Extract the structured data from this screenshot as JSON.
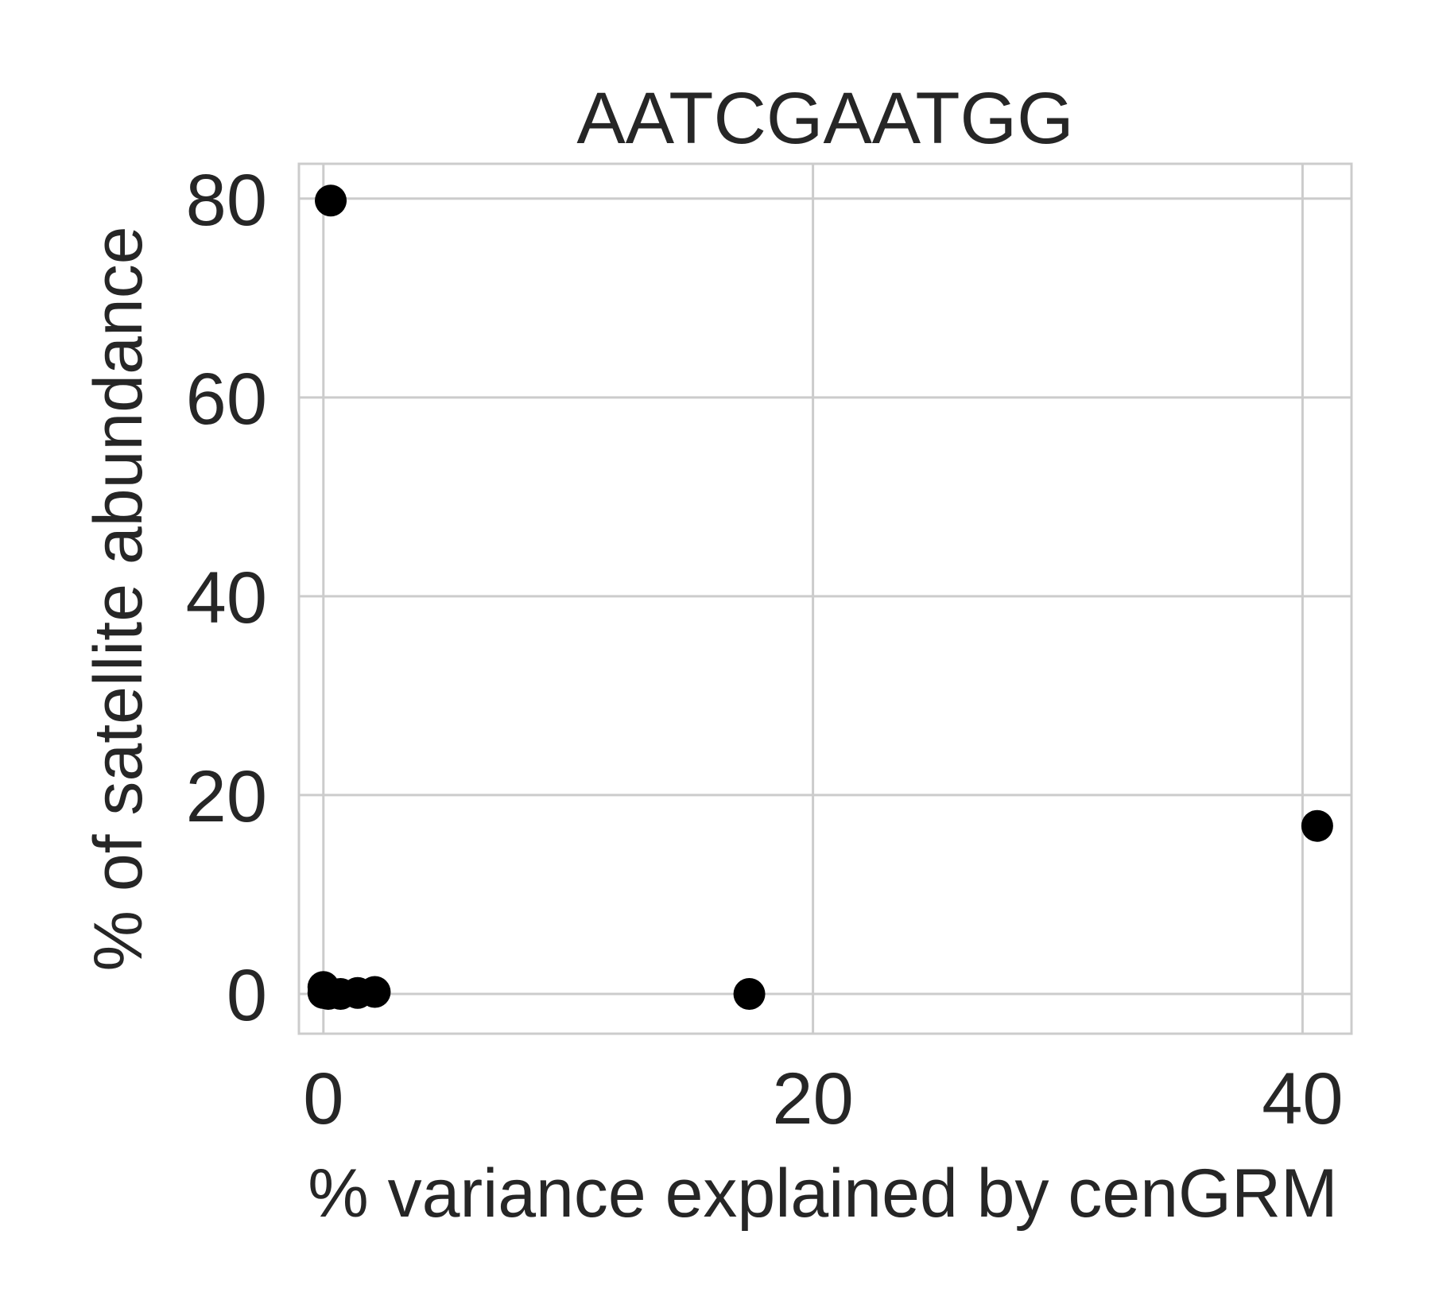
{
  "chart_data": {
    "type": "scatter",
    "title": "AATCGAATGG",
    "xlabel": "% variance explained by cenGRM",
    "ylabel": "% of satellite abundance",
    "xlim": [
      -1.0,
      42.0
    ],
    "ylim": [
      -4.0,
      83.5
    ],
    "xticks": [
      0,
      20,
      40
    ],
    "yticks": [
      0,
      20,
      40,
      60,
      80
    ],
    "xtick_labels": [
      "0",
      "20",
      "40"
    ],
    "ytick_labels": [
      "0",
      "20",
      "40",
      "60",
      "80"
    ],
    "grid": true,
    "marker_color": "#000000",
    "points": [
      {
        "x": 0.3,
        "y": 79.8
      },
      {
        "x": 40.6,
        "y": 16.9
      },
      {
        "x": 17.4,
        "y": 0.0
      },
      {
        "x": 0.0,
        "y": 0.7
      },
      {
        "x": 0.0,
        "y": 0.1
      },
      {
        "x": 0.2,
        "y": 0.0
      },
      {
        "x": 0.7,
        "y": 0.0
      },
      {
        "x": 1.4,
        "y": 0.1
      },
      {
        "x": 2.1,
        "y": 0.2
      }
    ]
  }
}
